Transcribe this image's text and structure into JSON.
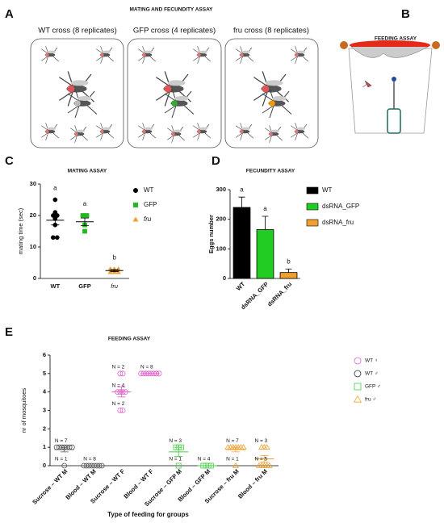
{
  "panel_a": {
    "letter": "A",
    "title": "MATING AND FECUNDITY ASSAY",
    "groups": [
      "WT cross (8 replicates)",
      "GFP cross (4 replicates)",
      "fru cross (8 replicates)"
    ]
  },
  "panel_b": {
    "letter": "B",
    "title": "FEEDING ASSAY"
  },
  "chart_data": [
    {
      "type": "dot",
      "letter": "C",
      "title": "MATING ASSAY",
      "ylabel": "mating time (sec)",
      "ylim": [
        0,
        30
      ],
      "yticks": [
        0,
        10,
        20,
        30
      ],
      "marker_fill": "solid",
      "series": [
        {
          "name": "WT",
          "color": "#000000",
          "marker": "circle",
          "values": [
            25,
            21,
            20,
            20,
            19,
            17,
            13,
            13
          ],
          "mean": 18.5,
          "sem": 1.5,
          "annotation": "a"
        },
        {
          "name": "GFP",
          "color": "#22b822",
          "marker": "square",
          "values": [
            20,
            20,
            17,
            15
          ],
          "mean": 18,
          "sem": 1.2,
          "annotation": "a"
        },
        {
          "name": "fru",
          "color": "#f0a030",
          "marker": "triangle",
          "values": [
            2,
            2,
            3,
            3,
            2,
            3
          ],
          "mean": 2.5,
          "sem": 0.3,
          "annotation": "b"
        }
      ]
    },
    {
      "type": "bar",
      "letter": "D",
      "title": "FECUNDITY ASSAY",
      "ylabel": "Eggs number",
      "categories": [
        "WT",
        "dsRNA_GFP",
        "dsRNA_fru"
      ],
      "values": [
        240,
        165,
        20
      ],
      "errors": [
        35,
        45,
        12
      ],
      "colors": [
        "#000000",
        "#22cc22",
        "#f0a030"
      ],
      "annotations": [
        "a",
        "a",
        "b"
      ],
      "ylim": [
        0,
        300
      ],
      "yticks": [
        0,
        100,
        200,
        300
      ]
    },
    {
      "type": "dot",
      "letter": "E",
      "title": "FEEDING ASSAY",
      "ylabel": "nr of mosquitoes",
      "xlabel": "Type of feeding for groups",
      "ylim": [
        0,
        6
      ],
      "yticks": [
        0,
        1,
        2,
        3,
        4,
        5,
        6
      ],
      "marker_fill": "hollow",
      "series": [
        {
          "name": "Sucrose – WT M",
          "color": "#555555",
          "marker": "circle",
          "values": [
            1,
            1,
            1,
            1,
            1,
            1,
            1,
            0
          ],
          "mean": 0.875,
          "sem": 0.125
        },
        {
          "name": "Blood – WT M",
          "color": "#555555",
          "marker": "circle",
          "values": [
            0,
            0,
            0,
            0,
            0,
            0,
            0,
            0
          ],
          "mean": 0,
          "sem": 0
        },
        {
          "name": "Sucrose – WT F",
          "color": "#dd66cc",
          "marker": "circle",
          "values": [
            5,
            5,
            4,
            4,
            4,
            4,
            3,
            3
          ],
          "mean": 4,
          "sem": 0.27
        },
        {
          "name": "Blood – WT F",
          "color": "#dd66cc",
          "marker": "circle",
          "values": [
            5,
            5,
            5,
            5,
            5,
            5,
            5,
            5
          ],
          "mean": 5,
          "sem": 0
        },
        {
          "name": "Sucrose – GFP M",
          "color": "#44cc44",
          "marker": "square",
          "values": [
            1,
            1,
            1,
            0
          ],
          "mean": 0.75,
          "sem": 0.25
        },
        {
          "name": "Blood – GFP M",
          "color": "#44cc44",
          "marker": "square",
          "values": [
            0,
            0,
            0,
            0
          ],
          "mean": 0,
          "sem": 0
        },
        {
          "name": "Sucrose – fru M",
          "color": "#f0a030",
          "marker": "triangle",
          "values": [
            1,
            1,
            1,
            1,
            1,
            1,
            1,
            0
          ],
          "mean": 0.875,
          "sem": 0.125
        },
        {
          "name": "Blood – fru M",
          "color": "#f0a030",
          "marker": "triangle",
          "values": [
            1,
            1,
            1,
            0,
            0,
            0,
            0,
            0
          ],
          "mean": 0.375,
          "sem": 0.18
        }
      ],
      "annotations": [
        {
          "text": "N = 7",
          "category": 0,
          "y": 1
        },
        {
          "text": "N = 1",
          "category": 0,
          "y": 0
        },
        {
          "text": "N = 8",
          "category": 1,
          "y": 0
        },
        {
          "text": "N = 2",
          "category": 2,
          "y": 5
        },
        {
          "text": "N = 4",
          "category": 2,
          "y": 4
        },
        {
          "text": "N = 2",
          "category": 2,
          "y": 3
        },
        {
          "text": "N = 8",
          "category": 3,
          "y": 5
        },
        {
          "text": "N = 3",
          "category": 4,
          "y": 1
        },
        {
          "text": "N = 1",
          "category": 4,
          "y": 0
        },
        {
          "text": "N = 4",
          "category": 5,
          "y": 0
        },
        {
          "text": "N = 7",
          "category": 6,
          "y": 1
        },
        {
          "text": "N = 1",
          "category": 6,
          "y": 0
        },
        {
          "text": "N = 3",
          "category": 7,
          "y": 1
        },
        {
          "text": "N = 5",
          "category": 7,
          "y": 0
        }
      ],
      "legend": [
        {
          "name": "WT ♀",
          "color": "#dd66cc",
          "marker": "circle"
        },
        {
          "name": "WT ♂",
          "color": "#333333",
          "marker": "circle"
        },
        {
          "name": "GFP ♂",
          "color": "#44cc44",
          "marker": "square"
        },
        {
          "name": "fru ♂",
          "color": "#f0a030",
          "marker": "triangle"
        }
      ]
    }
  ]
}
